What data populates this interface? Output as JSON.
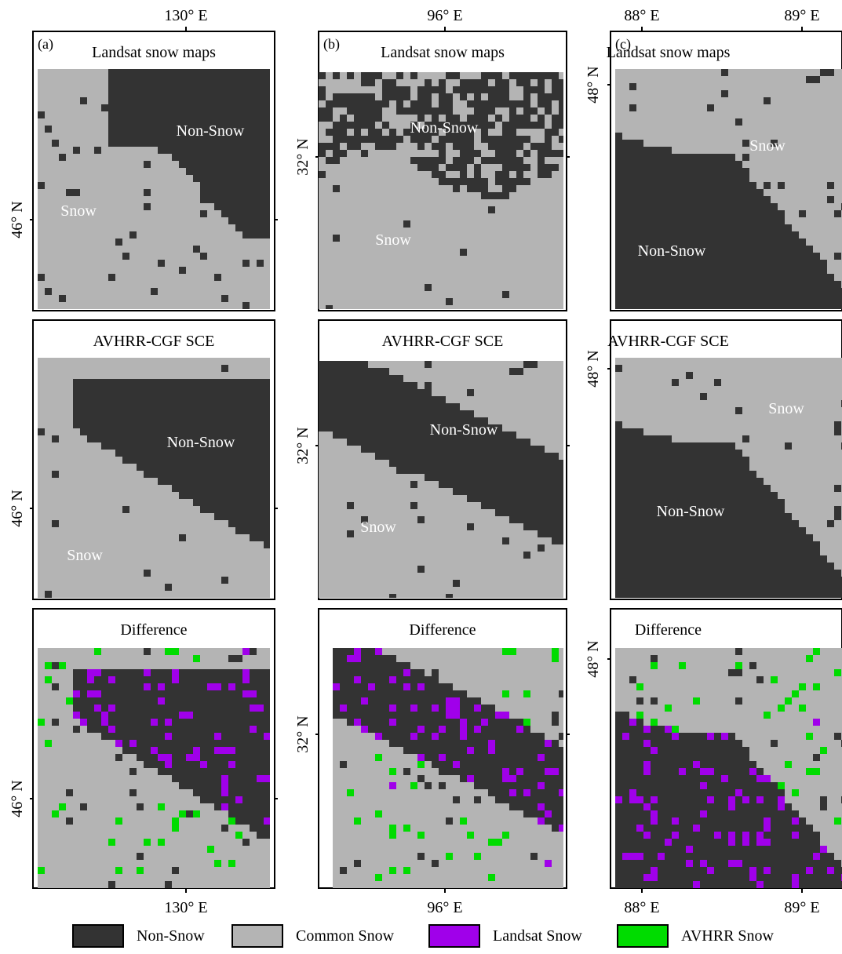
{
  "colors": {
    "non_snow": "#333333",
    "common_snow": "#b4b4b4",
    "landsat_snow": "#a000ea",
    "avhrr_snow": "#00dc00",
    "frame": "#000000",
    "panel_text": "#ffffff"
  },
  "legend": [
    {
      "label": "Non-Snow",
      "key": "non_snow"
    },
    {
      "label": "Common Snow",
      "key": "common_snow"
    },
    {
      "label": "Landsat Snow",
      "key": "landsat_snow"
    },
    {
      "label": "AVHRR Snow",
      "key": "avhrr_snow"
    }
  ],
  "columns": [
    {
      "id": "a",
      "letter": "(a)",
      "top_lon_labels": [
        "130° E"
      ],
      "bottom_lon_labels": [
        "130° E"
      ],
      "lat_label": "46° N",
      "rows": [
        {
          "title": "Landsat snow maps",
          "labels": [
            "Non-Snow",
            "Snow"
          ]
        },
        {
          "title": "AVHRR-CGF SCE",
          "labels": [
            "Non-Snow",
            "Snow"
          ]
        },
        {
          "title": "Difference",
          "labels": []
        }
      ]
    },
    {
      "id": "b",
      "letter": "(b)",
      "top_lon_labels": [
        "96° E"
      ],
      "bottom_lon_labels": [
        "96° E"
      ],
      "lat_label": "32° N",
      "rows": [
        {
          "title": "Landsat snow maps",
          "labels": [
            "Non-Snow",
            "Snow"
          ]
        },
        {
          "title": "AVHRR-CGF SCE",
          "labels": [
            "Non-Snow",
            "Snow"
          ]
        },
        {
          "title": "Difference",
          "labels": []
        }
      ]
    },
    {
      "id": "c",
      "letter": "(c)",
      "top_lon_labels": [
        "88° E",
        "89° E"
      ],
      "bottom_lon_labels": [
        "88° E",
        "89° E"
      ],
      "lat_label": "48° N",
      "rows": [
        {
          "title": "Landsat snow maps",
          "labels": [
            "Snow",
            "Non-Snow"
          ]
        },
        {
          "title": "AVHRR-CGF SCE",
          "labels": [
            "Snow",
            "Non-Snow"
          ]
        },
        {
          "title": "Difference",
          "labels": []
        }
      ]
    }
  ]
}
